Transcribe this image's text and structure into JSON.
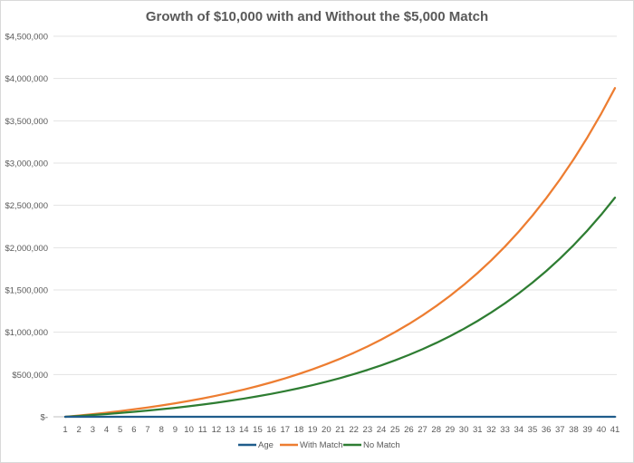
{
  "chart_data": {
    "type": "line",
    "title": "Growth of $10,000 with and Without the $5,000 Match",
    "xlabel": "",
    "ylabel": "",
    "ylim": [
      0,
      4500000
    ],
    "grid": true,
    "legend_position": "bottom",
    "yticks": [
      0,
      500000,
      1000000,
      1500000,
      2000000,
      2500000,
      3000000,
      3500000,
      4000000,
      4500000
    ],
    "ytick_labels": [
      "$-",
      "$500,000",
      "$1,000,000",
      "$1,500,000",
      "$2,000,000",
      "$2,500,000",
      "$3,000,000",
      "$3,500,000",
      "$4,000,000",
      "$4,500,000"
    ],
    "categories": [
      "1",
      "2",
      "3",
      "4",
      "5",
      "6",
      "7",
      "8",
      "9",
      "10",
      "11",
      "12",
      "13",
      "14",
      "15",
      "16",
      "17",
      "18",
      "19",
      "20",
      "21",
      "22",
      "23",
      "24",
      "25",
      "26",
      "27",
      "28",
      "29",
      "30",
      "31",
      "32",
      "33",
      "34",
      "35",
      "36",
      "37",
      "38",
      "39",
      "40",
      "41"
    ],
    "series": [
      {
        "name": "Age",
        "color": "#1f5c8b",
        "values": [
          0,
          0,
          0,
          0,
          0,
          0,
          0,
          0,
          0,
          0,
          0,
          0,
          0,
          0,
          0,
          0,
          0,
          0,
          0,
          0,
          0,
          0,
          0,
          0,
          0,
          0,
          0,
          0,
          0,
          0,
          0,
          0,
          0,
          0,
          0,
          0,
          0,
          0,
          0,
          0,
          0
        ]
      },
      {
        "name": "With Match",
        "color": "#ed7d31",
        "values": [
          0,
          15000,
          31200,
          48700,
          67600,
          88000,
          110000,
          133800,
          159500,
          187300,
          217300,
          249600,
          284600,
          322400,
          363200,
          407200,
          454800,
          506200,
          561700,
          621600,
          686400,
          756300,
          831900,
          913500,
          1001500,
          1096700,
          1199400,
          1310500,
          1430300,
          1559800,
          1699600,
          1850600,
          2013700,
          2189800,
          2380000,
          2585400,
          2807300,
          3046900,
          3305700,
          3585200,
          3887000
        ]
      },
      {
        "name": "No Match",
        "color": "#2e7d32",
        "values": [
          0,
          10000,
          20800,
          32500,
          45100,
          58700,
          73400,
          89300,
          106400,
          124900,
          144900,
          166400,
          189700,
          214900,
          242000,
          271400,
          303200,
          337400,
          374400,
          414400,
          457500,
          504200,
          554600,
          609000,
          667700,
          731200,
          799700,
          873700,
          953600,
          1039900,
          1133100,
          1233700,
          1342500,
          1459900,
          1586700,
          1723700,
          1871600,
          2031300,
          2203900,
          2390300,
          2591500
        ]
      }
    ]
  }
}
